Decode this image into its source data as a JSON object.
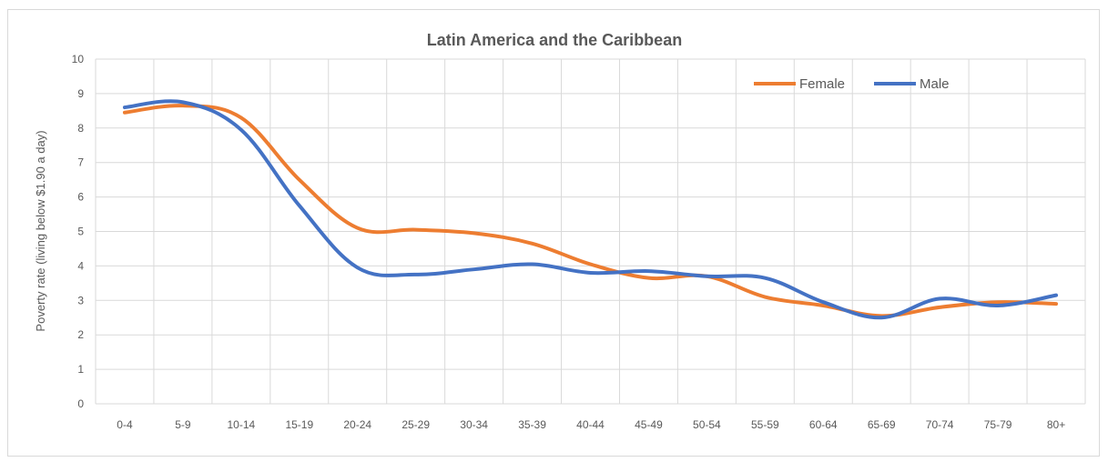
{
  "chart_data": {
    "type": "line",
    "title": "Latin America and the Caribbean",
    "xlabel": "",
    "ylabel": "Poverty rate (living below $1.90 a day)",
    "categories": [
      "0-4",
      "5-9",
      "10-14",
      "15-19",
      "20-24",
      "25-29",
      "30-34",
      "35-39",
      "40-44",
      "45-49",
      "50-54",
      "55-59",
      "60-64",
      "65-69",
      "70-74",
      "75-79",
      "80+"
    ],
    "ylim": [
      0,
      10
    ],
    "yticks": [
      "0",
      "1",
      "2",
      "3",
      "4",
      "5",
      "6",
      "7",
      "8",
      "9",
      "10"
    ],
    "grid": true,
    "legend_position": "top-right",
    "series": [
      {
        "name": "Female",
        "color": "#ED7D31",
        "values": [
          8.45,
          8.65,
          8.3,
          6.5,
          5.1,
          5.05,
          4.95,
          4.65,
          4.05,
          3.65,
          3.7,
          3.1,
          2.85,
          2.55,
          2.8,
          2.95,
          2.9
        ]
      },
      {
        "name": "Male",
        "color": "#4472C4",
        "values": [
          8.6,
          8.75,
          7.95,
          5.75,
          3.95,
          3.75,
          3.9,
          4.05,
          3.8,
          3.85,
          3.7,
          3.65,
          2.95,
          2.5,
          3.05,
          2.85,
          3.15
        ]
      }
    ]
  }
}
